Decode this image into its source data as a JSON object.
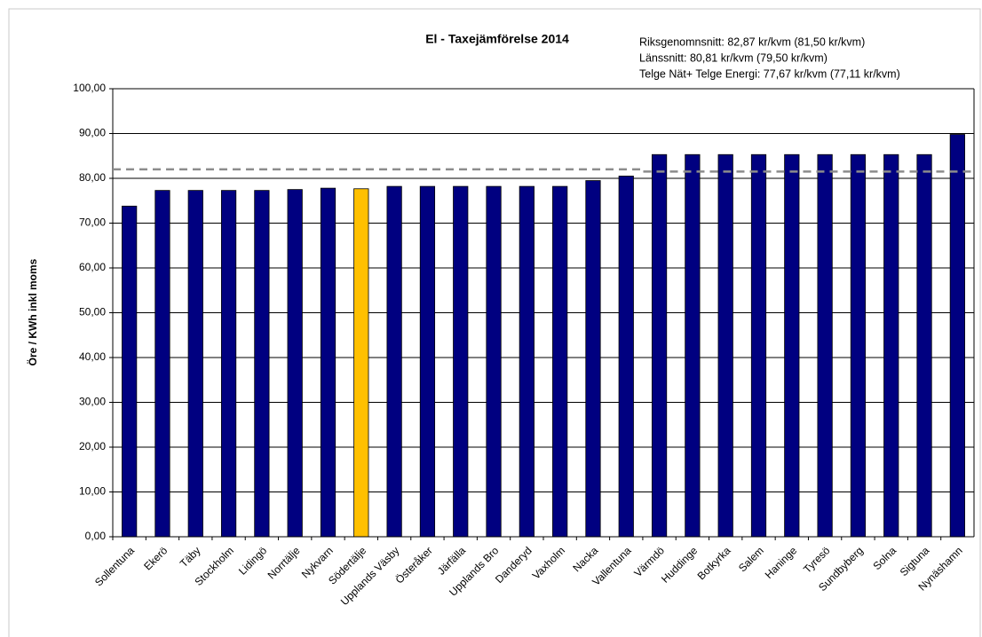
{
  "chart_data": {
    "type": "bar",
    "title": "El - Taxejämförelse 2014",
    "annotations": [
      "Riksgenomnsnitt: 82,87 kr/kvm (81,50 kr/kvm)",
      "Länssnitt: 80,81 kr/kvm (79,50 kr/kvm)",
      "Telge Nät+ Telge Energi: 77,67 kr/kvm (77,11 kr/kvm)"
    ],
    "y_label": "Öre / KWh inkl moms",
    "categories": [
      "Sollentuna",
      "Ekerö",
      "Täby",
      "Stockholm",
      "Lidingö",
      "Norrtälje",
      "Nykvarn",
      "Södertälje",
      "Upplands Väsby",
      "Österåker",
      "Järfälla",
      "Upplands Bro",
      "Danderyd",
      "Vaxholm",
      "Nacka",
      "Vallentuna",
      "Värmdö",
      "Huddinge",
      "Botkyrka",
      "Salem",
      "Haninge",
      "Tyresö",
      "Sundbyberg",
      "Solna",
      "Sigtuna",
      "Nynäshamn"
    ],
    "values": [
      73.8,
      77.3,
      77.3,
      77.3,
      77.3,
      77.5,
      77.8,
      77.67,
      78.2,
      78.2,
      78.2,
      78.2,
      78.2,
      78.2,
      79.5,
      80.5,
      85.3,
      85.3,
      85.3,
      85.3,
      85.3,
      85.3,
      85.3,
      85.3,
      85.3,
      89.8
    ],
    "colors": [
      "#000080",
      "#000080",
      "#000080",
      "#000080",
      "#000080",
      "#000080",
      "#000080",
      "#ffc000",
      "#000080",
      "#000080",
      "#000080",
      "#000080",
      "#000080",
      "#000080",
      "#000080",
      "#000080",
      "#000080",
      "#000080",
      "#000080",
      "#000080",
      "#000080",
      "#000080",
      "#000080",
      "#000080",
      "#000080",
      "#000080"
    ],
    "reference_line": {
      "color": "#8c8c8c",
      "values": [
        82.0,
        82.0,
        82.0,
        82.0,
        82.0,
        82.0,
        82.0,
        82.0,
        82.0,
        82.0,
        82.0,
        82.0,
        82.0,
        82.0,
        82.0,
        82.0,
        81.5,
        81.5,
        81.5,
        81.5,
        81.5,
        81.5,
        81.5,
        81.5,
        81.5,
        81.5
      ]
    },
    "ylim": [
      0,
      100
    ],
    "yticks": [
      {
        "value": 0,
        "label": "0,00"
      },
      {
        "value": 10,
        "label": "10,00"
      },
      {
        "value": 20,
        "label": "20,00"
      },
      {
        "value": 30,
        "label": "30,00"
      },
      {
        "value": 40,
        "label": "40,00"
      },
      {
        "value": 50,
        "label": "50,00"
      },
      {
        "value": 60,
        "label": "60,00"
      },
      {
        "value": 70,
        "label": "70,00"
      },
      {
        "value": 80,
        "label": "80,00"
      },
      {
        "value": 90,
        "label": "90,00"
      },
      {
        "value": 100,
        "label": "100,00"
      }
    ],
    "grid": true
  }
}
